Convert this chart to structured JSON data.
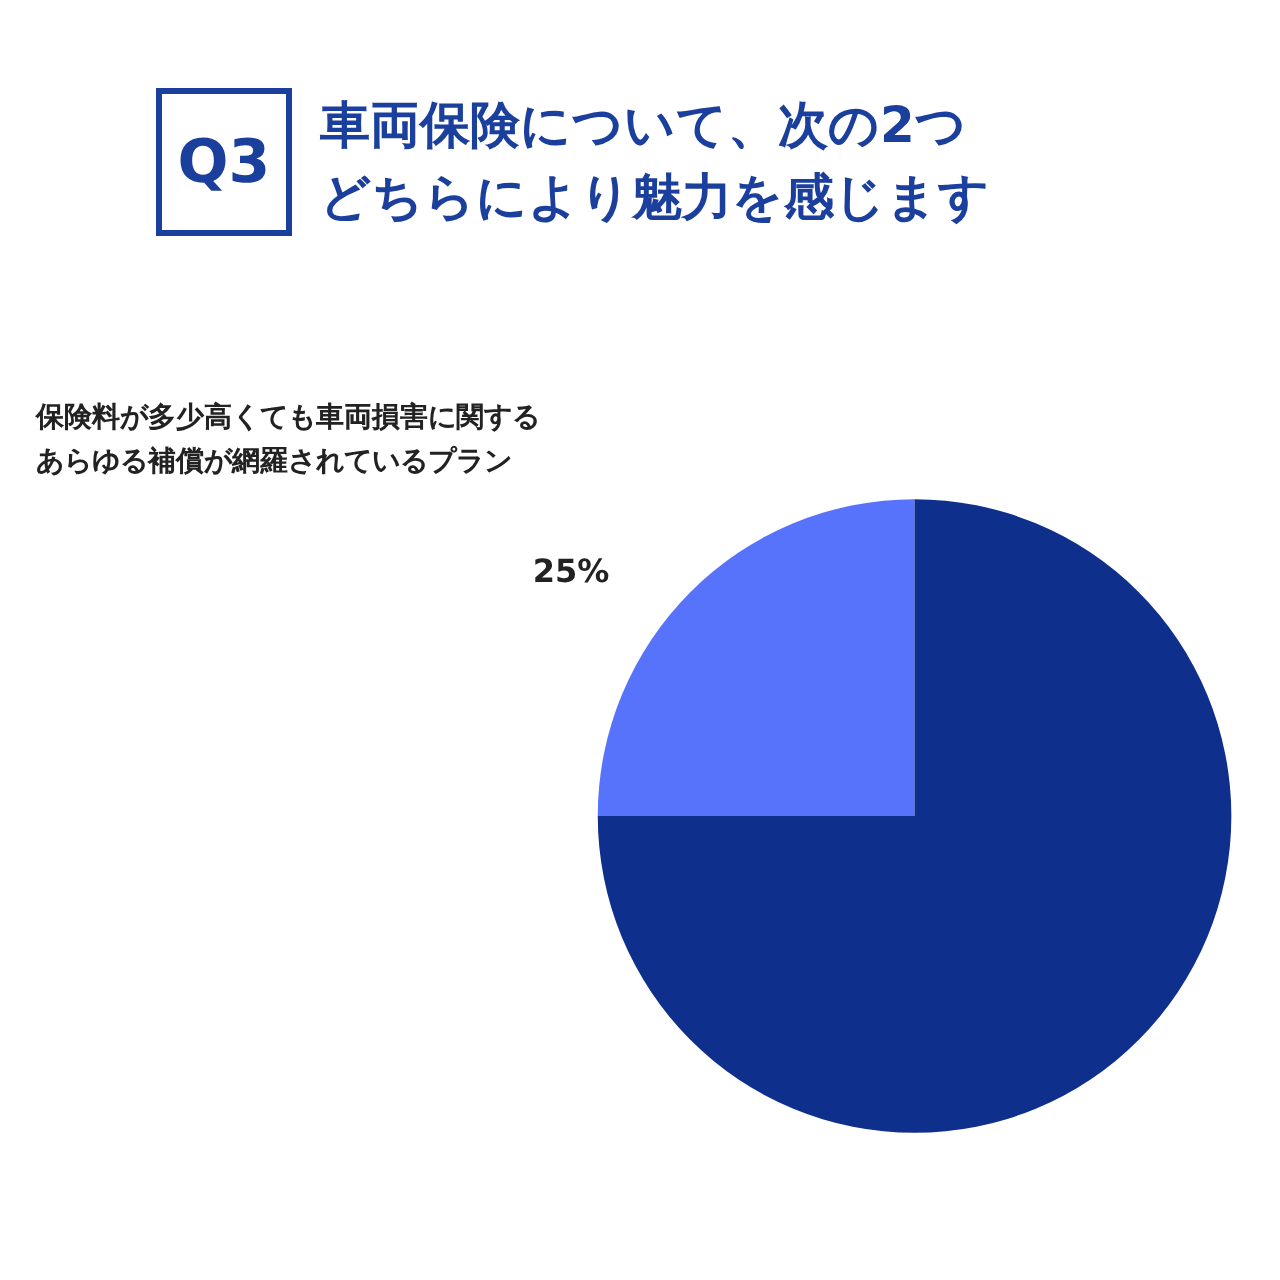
{
  "chart_data": {
    "type": "pie",
    "title": "車両保険について、次の2つどちらにより魅力を感じます",
    "annotations": [
      "Q3"
    ],
    "categories": [
      "保険料が多少高くても車両損害に関するあらゆる補償が網羅されているプラン",
      null
    ],
    "values": [
      25,
      75
    ],
    "colors": [
      "#5873fb",
      "#0f2f8c"
    ],
    "value_labels": [
      "25%",
      null
    ],
    "legend": false
  }
}
